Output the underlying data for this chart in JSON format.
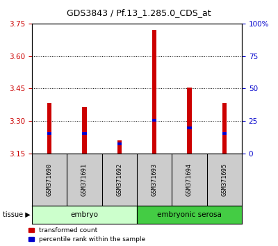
{
  "title": "GDS3843 / Pf.13_1.285.0_CDS_at",
  "samples": [
    "GSM371690",
    "GSM371691",
    "GSM371692",
    "GSM371693",
    "GSM371694",
    "GSM371695"
  ],
  "red_values": [
    3.385,
    3.365,
    3.21,
    3.72,
    3.455,
    3.385
  ],
  "blue_values": [
    3.245,
    3.245,
    3.195,
    3.305,
    3.27,
    3.245
  ],
  "ylim_left": [
    3.15,
    3.75
  ],
  "ylim_right": [
    0,
    100
  ],
  "yticks_left": [
    3.15,
    3.3,
    3.45,
    3.6,
    3.75
  ],
  "yticks_right": [
    0,
    25,
    50,
    75,
    100
  ],
  "ytick_labels_right": [
    "0",
    "25",
    "50",
    "75",
    "100%"
  ],
  "hlines": [
    3.3,
    3.45,
    3.6
  ],
  "tissue_label": "tissue",
  "bar_color": "#cc0000",
  "blue_color": "#0000cc",
  "bar_width": 0.12,
  "base_value": 3.15,
  "background_color": "#ffffff",
  "plot_bg": "#ffffff",
  "label_color_left": "#cc0000",
  "label_color_right": "#0000cc",
  "embryo_color_light": "#ccffcc",
  "embryo_color_dark": "#44cc44",
  "sample_label_bg": "#cccccc",
  "legend_items": [
    "transformed count",
    "percentile rank within the sample"
  ]
}
